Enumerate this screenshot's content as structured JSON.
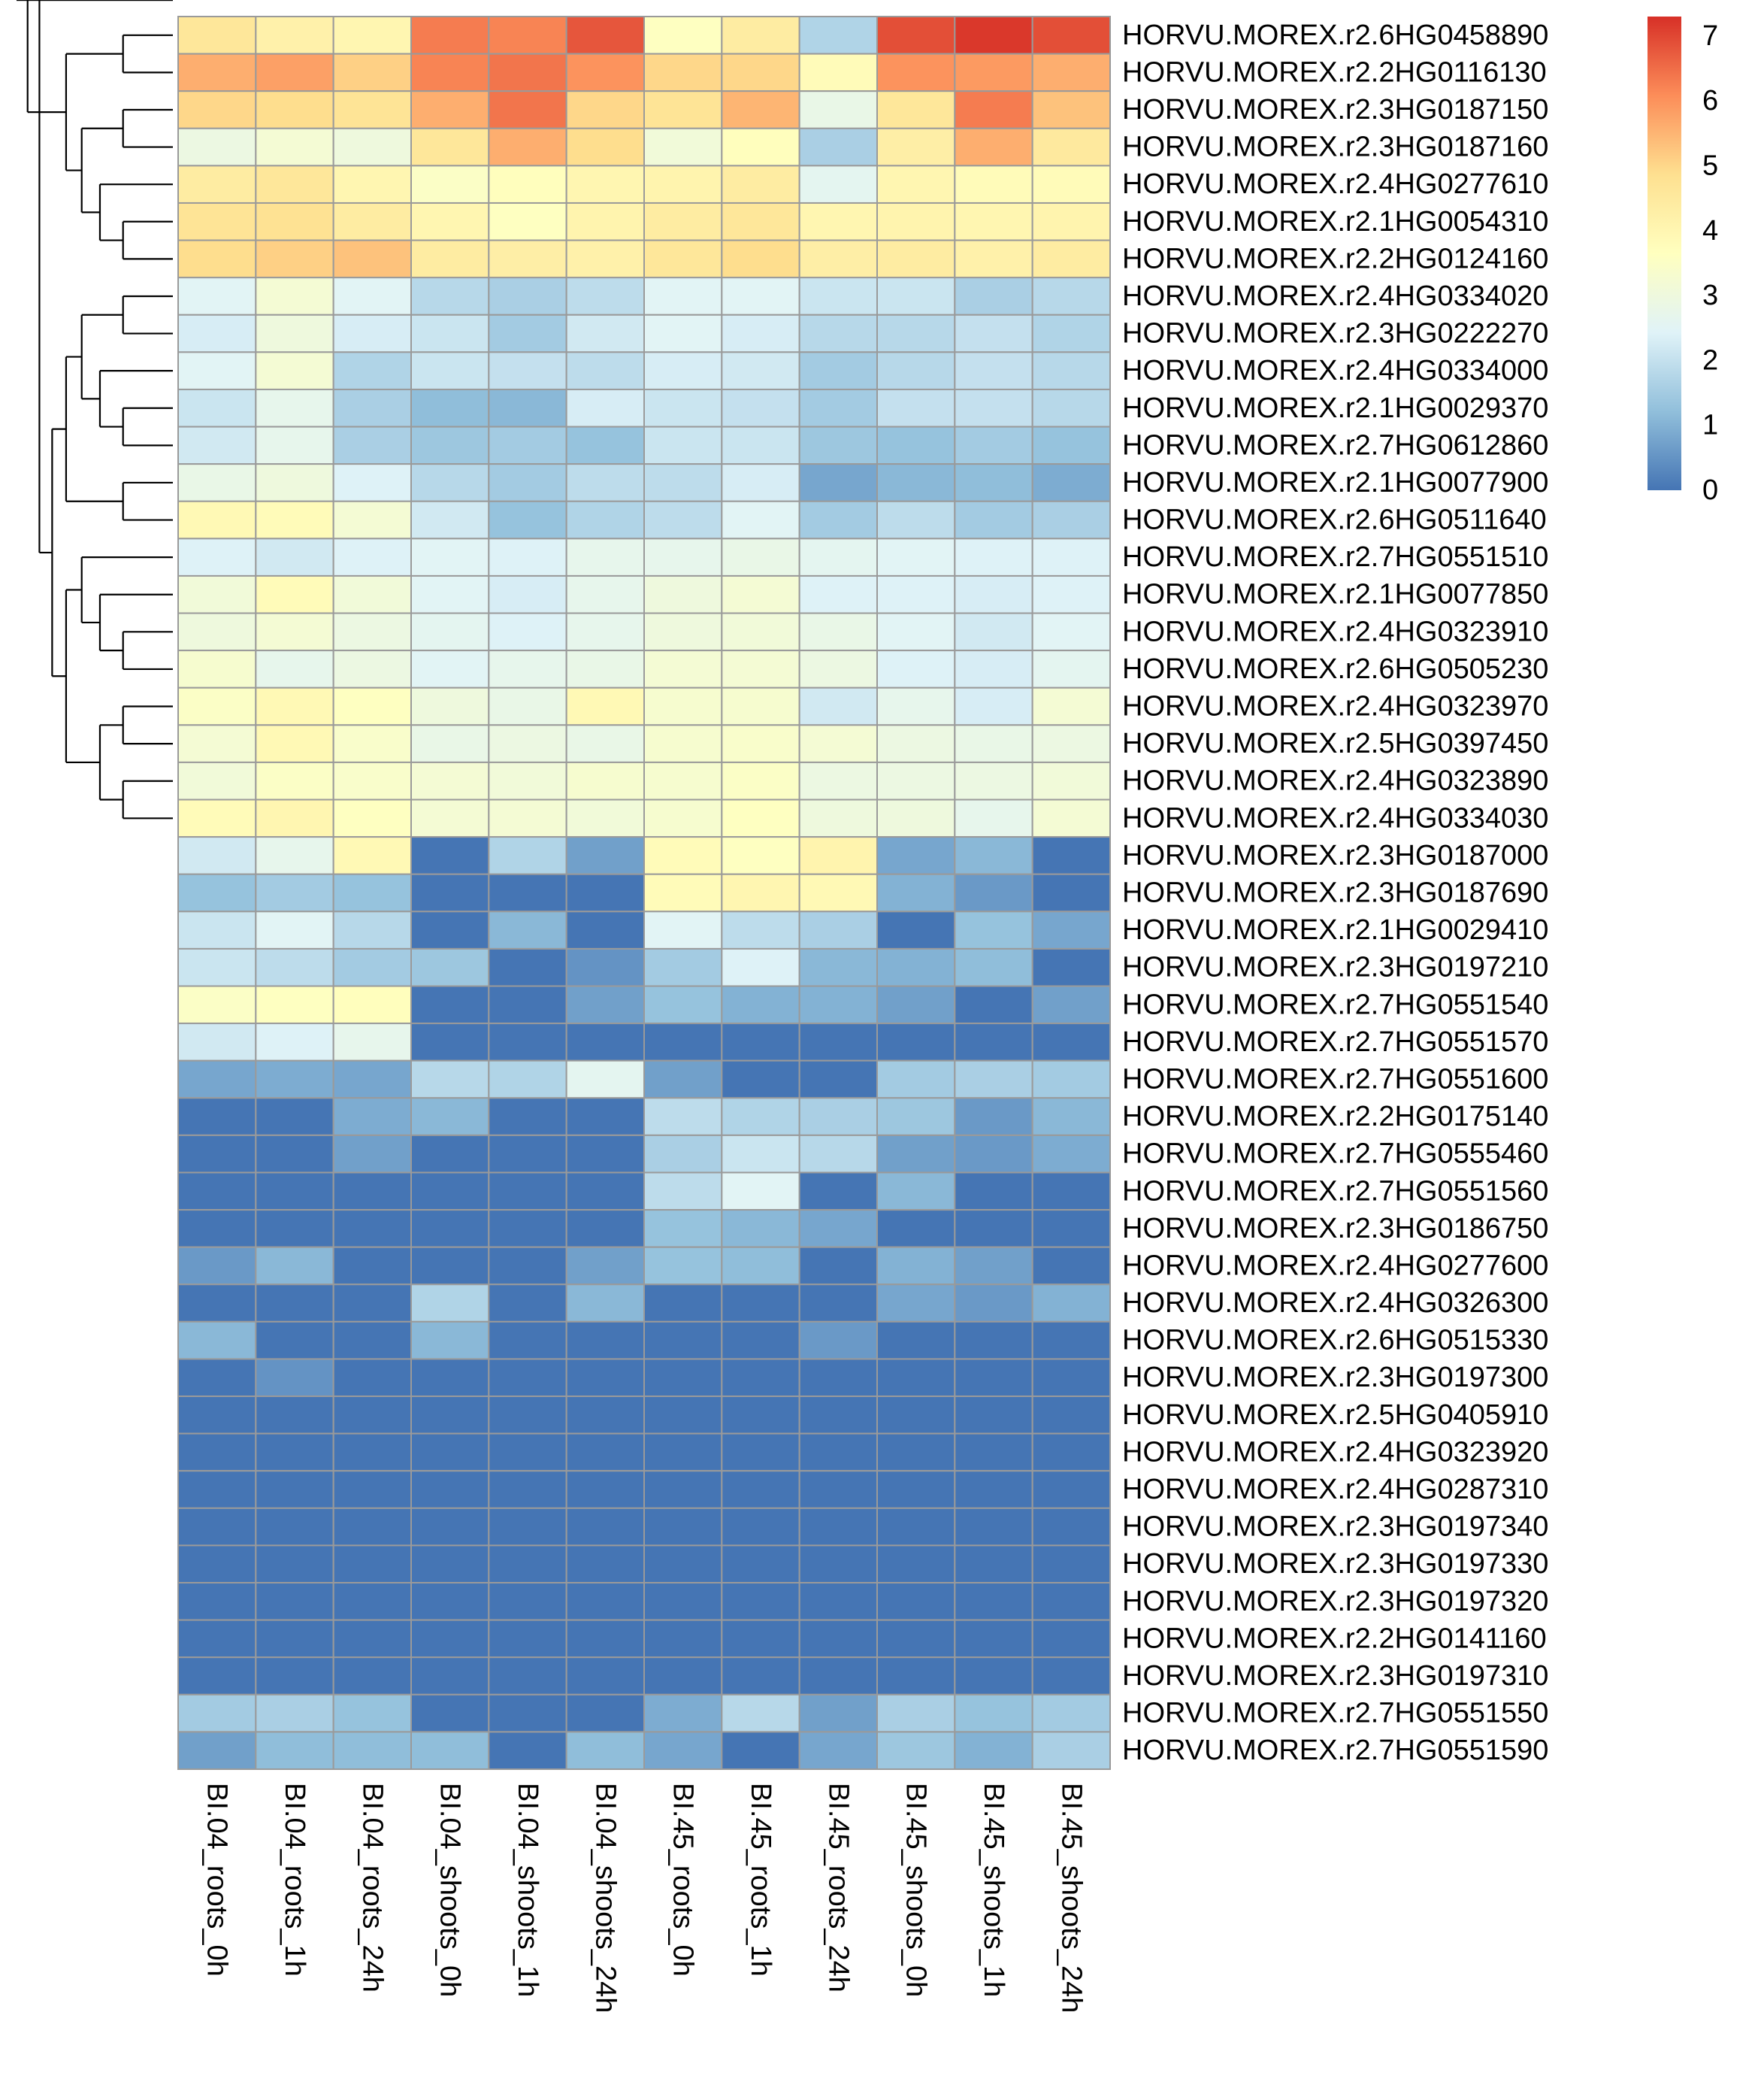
{
  "chart_data": {
    "type": "heatmap",
    "title": "",
    "xlabel": "",
    "ylabel": "",
    "columns": [
      "BI.04_roots_0h",
      "BI.04_roots_1h",
      "BI.04_roots_24h",
      "BI.04_shoots_0h",
      "BI.04_shoots_1h",
      "BI.04_shoots_24h",
      "BI.45_roots_0h",
      "BI.45_roots_1h",
      "BI.45_roots_24h",
      "BI.45_shoots_0h",
      "BI.45_shoots_1h",
      "BI.45_shoots_24h"
    ],
    "rows": [
      "HORVU.MOREX.r2.6HG0458890",
      "HORVU.MOREX.r2.2HG0116130",
      "HORVU.MOREX.r2.3HG0187150",
      "HORVU.MOREX.r2.3HG0187160",
      "HORVU.MOREX.r2.4HG0277610",
      "HORVU.MOREX.r2.1HG0054310",
      "HORVU.MOREX.r2.2HG0124160",
      "HORVU.MOREX.r2.4HG0334020",
      "HORVU.MOREX.r2.3HG0222270",
      "HORVU.MOREX.r2.4HG0334000",
      "HORVU.MOREX.r2.1HG0029370",
      "HORVU.MOREX.r2.7HG0612860",
      "HORVU.MOREX.r2.1HG0077900",
      "HORVU.MOREX.r2.6HG0511640",
      "HORVU.MOREX.r2.7HG0551510",
      "HORVU.MOREX.r2.1HG0077850",
      "HORVU.MOREX.r2.4HG0323910",
      "HORVU.MOREX.r2.6HG0505230",
      "HORVU.MOREX.r2.4HG0323970",
      "HORVU.MOREX.r2.5HG0397450",
      "HORVU.MOREX.r2.4HG0323890",
      "HORVU.MOREX.r2.4HG0334030",
      "HORVU.MOREX.r2.3HG0187000",
      "HORVU.MOREX.r2.3HG0187690",
      "HORVU.MOREX.r2.1HG0029410",
      "HORVU.MOREX.r2.3HG0197210",
      "HORVU.MOREX.r2.7HG0551540",
      "HORVU.MOREX.r2.7HG0551570",
      "HORVU.MOREX.r2.7HG0551600",
      "HORVU.MOREX.r2.2HG0175140",
      "HORVU.MOREX.r2.7HG0555460",
      "HORVU.MOREX.r2.7HG0551560",
      "HORVU.MOREX.r2.3HG0186750",
      "HORVU.MOREX.r2.4HG0277600",
      "HORVU.MOREX.r2.4HG0326300",
      "HORVU.MOREX.r2.6HG0515330",
      "HORVU.MOREX.r2.3HG0197300",
      "HORVU.MOREX.r2.5HG0405910",
      "HORVU.MOREX.r2.4HG0323920",
      "HORVU.MOREX.r2.4HG0287310",
      "HORVU.MOREX.r2.3HG0197340",
      "HORVU.MOREX.r2.3HG0197330",
      "HORVU.MOREX.r2.3HG0197320",
      "HORVU.MOREX.r2.2HG0141160",
      "HORVU.MOREX.r2.3HG0197310",
      "HORVU.MOREX.r2.7HG0551550",
      "HORVU.MOREX.r2.7HG0551590"
    ],
    "values": [
      [
        4.6,
        4.2,
        4.0,
        6.3,
        6.2,
        6.8,
        3.6,
        4.4,
        1.7,
        6.9,
        7.2,
        6.9
      ],
      [
        5.6,
        5.8,
        5.1,
        6.2,
        6.4,
        6.0,
        5.0,
        5.0,
        3.8,
        6.0,
        5.9,
        5.6
      ],
      [
        5.0,
        4.9,
        4.7,
        5.6,
        6.4,
        5.0,
        4.7,
        5.5,
        2.8,
        4.6,
        6.3,
        5.3
      ],
      [
        2.9,
        3.2,
        3.0,
        4.6,
        5.6,
        4.9,
        3.1,
        3.7,
        1.6,
        4.3,
        5.6,
        4.5
      ],
      [
        4.4,
        4.6,
        4.0,
        3.5,
        3.7,
        4.0,
        4.1,
        4.4,
        2.6,
        4.0,
        3.8,
        3.8
      ],
      [
        4.7,
        4.8,
        4.4,
        4.0,
        3.6,
        4.1,
        4.4,
        4.6,
        4.0,
        4.1,
        4.0,
        4.1
      ],
      [
        4.9,
        5.1,
        5.3,
        4.4,
        4.3,
        4.2,
        4.6,
        4.9,
        4.3,
        4.4,
        4.2,
        4.4
      ],
      [
        2.5,
        3.2,
        2.5,
        1.8,
        1.6,
        1.9,
        2.5,
        2.5,
        2.1,
        2.1,
        1.6,
        1.8
      ],
      [
        2.3,
        3.0,
        2.3,
        2.1,
        1.5,
        2.2,
        2.5,
        2.3,
        1.8,
        1.8,
        2.0,
        1.7
      ],
      [
        2.5,
        3.2,
        1.7,
        2.1,
        2.0,
        1.9,
        2.3,
        2.2,
        1.5,
        1.8,
        2.0,
        1.8
      ],
      [
        2.1,
        2.7,
        1.6,
        1.2,
        1.1,
        2.3,
        2.1,
        2.0,
        1.5,
        2.0,
        2.0,
        1.8
      ],
      [
        2.2,
        2.7,
        1.6,
        1.4,
        1.5,
        1.3,
        2.1,
        2.1,
        1.4,
        1.3,
        1.5,
        1.3
      ],
      [
        2.8,
        3.0,
        2.4,
        1.8,
        1.5,
        1.9,
        1.9,
        2.3,
        0.8,
        1.1,
        1.2,
        0.9
      ],
      [
        3.9,
        3.8,
        3.2,
        2.2,
        1.3,
        1.7,
        1.9,
        2.5,
        1.5,
        1.9,
        1.5,
        1.6
      ],
      [
        2.4,
        2.2,
        2.4,
        2.5,
        2.4,
        2.7,
        2.7,
        2.8,
        2.6,
        2.5,
        2.4,
        2.4
      ],
      [
        3.1,
        3.8,
        3.1,
        2.5,
        2.3,
        2.7,
        3.0,
        3.2,
        2.4,
        2.4,
        2.3,
        2.4
      ],
      [
        3.0,
        3.2,
        2.9,
        2.6,
        2.4,
        2.7,
        3.0,
        3.1,
        2.8,
        2.5,
        2.2,
        2.5
      ],
      [
        3.3,
        2.7,
        2.9,
        2.5,
        2.7,
        2.8,
        3.2,
        3.2,
        2.9,
        2.4,
        2.3,
        2.6
      ],
      [
        3.5,
        3.9,
        3.6,
        3.0,
        2.8,
        3.9,
        3.3,
        3.3,
        2.2,
        2.7,
        2.3,
        3.2
      ],
      [
        3.2,
        3.9,
        3.4,
        2.8,
        2.9,
        2.8,
        3.3,
        3.4,
        3.2,
        2.9,
        2.8,
        2.9
      ],
      [
        3.1,
        3.5,
        3.4,
        3.2,
        3.1,
        3.3,
        3.3,
        3.5,
        2.9,
        2.9,
        2.9,
        3.1
      ],
      [
        3.8,
        4.0,
        3.6,
        3.2,
        3.2,
        3.1,
        3.3,
        3.6,
        3.0,
        3.0,
        2.7,
        3.2
      ],
      [
        2.2,
        2.7,
        3.9,
        0,
        1.7,
        0.7,
        3.8,
        3.6,
        4.1,
        0.8,
        1.1,
        0
      ],
      [
        1.3,
        1.5,
        1.3,
        0,
        0,
        0,
        3.8,
        4.0,
        3.9,
        1.0,
        0.6,
        0
      ],
      [
        2.1,
        2.5,
        1.8,
        0,
        1.1,
        0,
        2.5,
        1.9,
        1.6,
        0,
        1.3,
        0.8
      ],
      [
        2.1,
        1.9,
        1.5,
        1.4,
        0,
        0.5,
        1.5,
        2.4,
        1.1,
        1.0,
        1.2,
        0
      ],
      [
        3.5,
        3.6,
        3.7,
        0,
        0,
        0.7,
        1.3,
        1.0,
        1.0,
        0.7,
        0,
        0.7
      ],
      [
        2.2,
        2.4,
        2.7,
        0,
        0,
        0,
        0,
        0,
        0,
        0,
        0,
        0
      ],
      [
        0.8,
        0.9,
        0.8,
        1.8,
        1.7,
        2.6,
        0.7,
        0,
        0,
        1.5,
        1.6,
        1.5
      ],
      [
        0,
        0,
        0.9,
        1.1,
        0,
        0,
        1.9,
        1.7,
        1.6,
        1.4,
        0.6,
        1.1
      ],
      [
        0,
        0,
        0.7,
        0,
        0,
        0,
        1.6,
        2.1,
        1.8,
        0.7,
        0.6,
        0.9
      ],
      [
        0,
        0,
        0,
        0,
        0,
        0,
        1.9,
        2.5,
        0,
        1.1,
        0,
        0
      ],
      [
        0,
        0,
        0,
        0,
        0,
        0,
        1.3,
        1.1,
        0.8,
        0,
        0,
        0
      ],
      [
        0.6,
        1.1,
        0,
        0,
        0,
        0.7,
        1.3,
        1.2,
        0,
        1.0,
        0.7,
        0
      ],
      [
        0,
        0,
        0,
        1.7,
        0,
        1.1,
        0,
        0,
        0,
        0.8,
        0.6,
        1.0
      ],
      [
        1.1,
        0,
        0,
        1.1,
        0,
        0,
        0,
        0,
        0.6,
        0,
        0,
        0
      ],
      [
        0,
        0.5,
        0,
        0,
        0,
        0,
        0,
        0,
        0,
        0,
        0,
        0
      ],
      [
        0,
        0,
        0,
        0,
        0,
        0,
        0,
        0,
        0,
        0,
        0,
        0
      ],
      [
        0,
        0,
        0,
        0,
        0,
        0,
        0,
        0,
        0,
        0,
        0,
        0
      ],
      [
        0,
        0,
        0,
        0,
        0,
        0,
        0,
        0,
        0,
        0,
        0,
        0
      ],
      [
        0,
        0,
        0,
        0,
        0,
        0,
        0,
        0,
        0,
        0,
        0,
        0
      ],
      [
        0,
        0,
        0,
        0,
        0,
        0,
        0,
        0,
        0,
        0,
        0,
        0
      ],
      [
        0,
        0,
        0,
        0,
        0,
        0,
        0,
        0,
        0,
        0,
        0,
        0
      ],
      [
        0,
        0,
        0,
        0,
        0,
        0,
        0,
        0,
        0,
        0,
        0,
        0
      ],
      [
        0,
        0,
        0,
        0,
        0,
        0,
        0,
        0,
        0,
        0,
        0,
        0
      ],
      [
        1.5,
        1.6,
        1.3,
        0,
        0,
        0,
        0.9,
        1.8,
        0.7,
        1.6,
        1.3,
        1.5
      ],
      [
        0.7,
        1.2,
        1.2,
        1.2,
        0,
        1.2,
        0.8,
        0,
        0.8,
        1.4,
        1.0,
        1.6
      ]
    ],
    "color_scale": {
      "min": 0,
      "max": 7.3,
      "colors": [
        "#4575B4",
        "#91BFDB",
        "#E0F3F8",
        "#FFFFBF",
        "#FEE090",
        "#FC8D59",
        "#D73027"
      ],
      "ticks": [
        "0",
        "1",
        "2",
        "3",
        "4",
        "5",
        "6",
        "7"
      ]
    },
    "cell_border_color": "#9A9A9A",
    "dendrogram_color": "#000000",
    "legend_position": "top-right"
  }
}
